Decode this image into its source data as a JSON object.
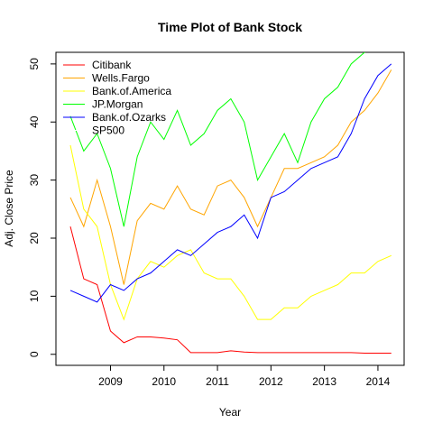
{
  "chart_data": {
    "type": "line",
    "title": "Time Plot of Bank Stock",
    "x_label": "Year",
    "y_label": "Adj. Close Price",
    "x": [
      2008.25,
      2008.5,
      2008.75,
      2009,
      2009.25,
      2009.5,
      2009.75,
      2010,
      2010.25,
      2010.5,
      2010.75,
      2011,
      2011.25,
      2011.5,
      2011.75,
      2012,
      2012.25,
      2012.5,
      2012.75,
      2013,
      2013.25,
      2013.5,
      2013.75,
      2014,
      2014.25
    ],
    "series": [
      {
        "name": "Citibank",
        "color": "#ff0000",
        "values": [
          22,
          13,
          12,
          4,
          2,
          3,
          3,
          2.8,
          2.5,
          0.3,
          0.3,
          0.3,
          0.6,
          0.4,
          0.3,
          0.3,
          0.3,
          0.3,
          0.3,
          0.3,
          0.3,
          0.3,
          0.2,
          0.2,
          0.2
        ]
      },
      {
        "name": "Wells.Fargo",
        "color": "#ffa500",
        "values": [
          27,
          22,
          30,
          22,
          12,
          23,
          26,
          25,
          29,
          25,
          24,
          29,
          30,
          27,
          22,
          27,
          32,
          32,
          33,
          34,
          36,
          40,
          42,
          45,
          49
        ]
      },
      {
        "name": "Bank.of.America",
        "color": "#ffff00",
        "values": [
          36,
          25,
          22,
          12,
          6,
          13,
          16,
          15,
          17,
          18,
          14,
          13,
          13,
          10,
          6,
          6,
          8,
          8,
          10,
          11,
          12,
          14,
          14,
          16,
          17
        ]
      },
      {
        "name": "JP.Morgan",
        "color": "#00ff00",
        "values": [
          41,
          35,
          38,
          32,
          22,
          34,
          40,
          37,
          42,
          36,
          38,
          42,
          44,
          40,
          30,
          34,
          38,
          33,
          40,
          44,
          46,
          50,
          52,
          55,
          56
        ]
      },
      {
        "name": "Bank.of.Ozarks",
        "color": "#0000ff",
        "values": [
          11,
          10,
          9,
          12,
          11,
          13,
          14,
          16,
          18,
          17,
          19,
          21,
          22,
          24,
          20,
          27,
          28,
          30,
          32,
          33,
          34,
          38,
          44,
          48,
          50
        ]
      },
      {
        "name": "SP500",
        "color": "#ffffff"
      }
    ],
    "xlim": [
      2007.98,
      2014.49
    ],
    "xticks": [
      2009,
      2010,
      2011,
      2012,
      2013,
      2014
    ],
    "ylim": [
      -1.9,
      52
    ],
    "yticks": [
      0,
      10,
      20,
      30,
      40,
      50
    ],
    "legend": "top-left"
  }
}
